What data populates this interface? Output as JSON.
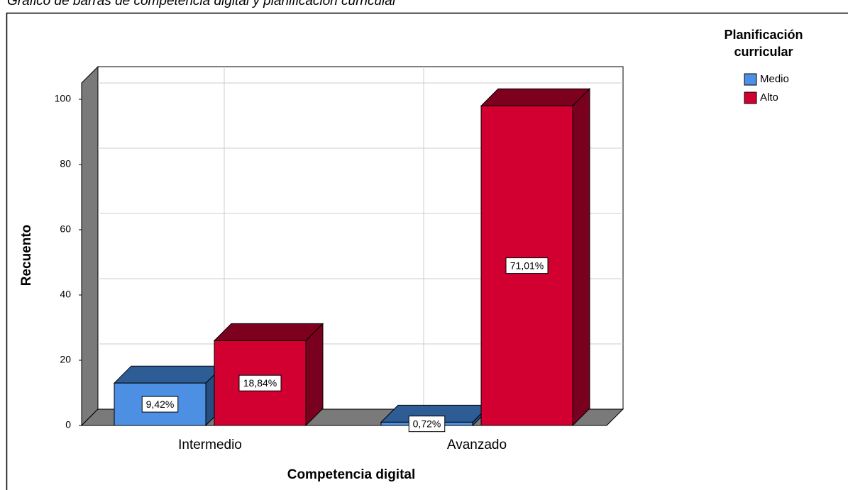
{
  "chart_data": {
    "type": "bar3d",
    "title": "Gráfico de barras de competencia digital y planificación curricular",
    "x_label": "Competencia digital",
    "y_label": "Recuento",
    "legend_title": [
      "Planificación",
      "curricular"
    ],
    "legend": "top-right",
    "categories": [
      "Intermedio",
      "Avanzado"
    ],
    "series": [
      {
        "name": "Medio",
        "color": "#4d90e3",
        "top_color": "#2e5c94",
        "side_color": "#254d80",
        "values": [
          13,
          1
        ],
        "data_labels": [
          "9,42%",
          "0,72%"
        ]
      },
      {
        "name": "Alto",
        "color": "#d10030",
        "top_color": "#7d001e",
        "side_color": "#7a001f",
        "values": [
          26,
          98
        ],
        "data_labels": [
          "18,84%",
          "71,01%"
        ]
      }
    ],
    "ylim": [
      0,
      105
    ],
    "yticks": [
      0,
      20,
      40,
      60,
      80,
      100
    ],
    "grid": true
  }
}
